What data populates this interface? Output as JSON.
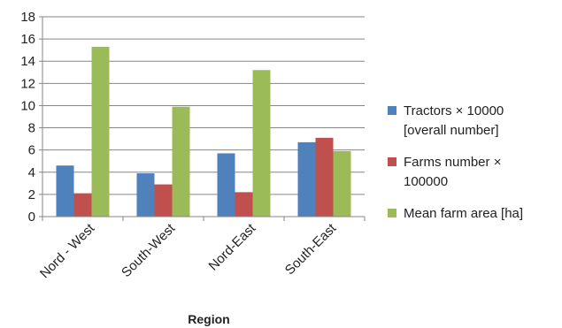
{
  "chart_data": {
    "type": "bar",
    "categories": [
      "Nord - West",
      "South-West",
      "Nord-East",
      "South-East"
    ],
    "xlabel": "Region",
    "ylabel": "",
    "ylim": [
      0,
      18
    ],
    "ytick_step": 2,
    "grid": true,
    "legend_position": "right",
    "series": [
      {
        "name": "Tractors × 10000\n[overall number]",
        "color": "#4F81BD",
        "values": [
          4.6,
          3.9,
          5.7,
          6.7
        ]
      },
      {
        "name": "Farms number ×\n100000",
        "color": "#C0504D",
        "values": [
          2.1,
          2.9,
          2.2,
          7.1
        ]
      },
      {
        "name": "Mean farm area [ha]",
        "color": "#9BBB59",
        "values": [
          15.3,
          9.9,
          13.2,
          5.9
        ]
      }
    ]
  }
}
